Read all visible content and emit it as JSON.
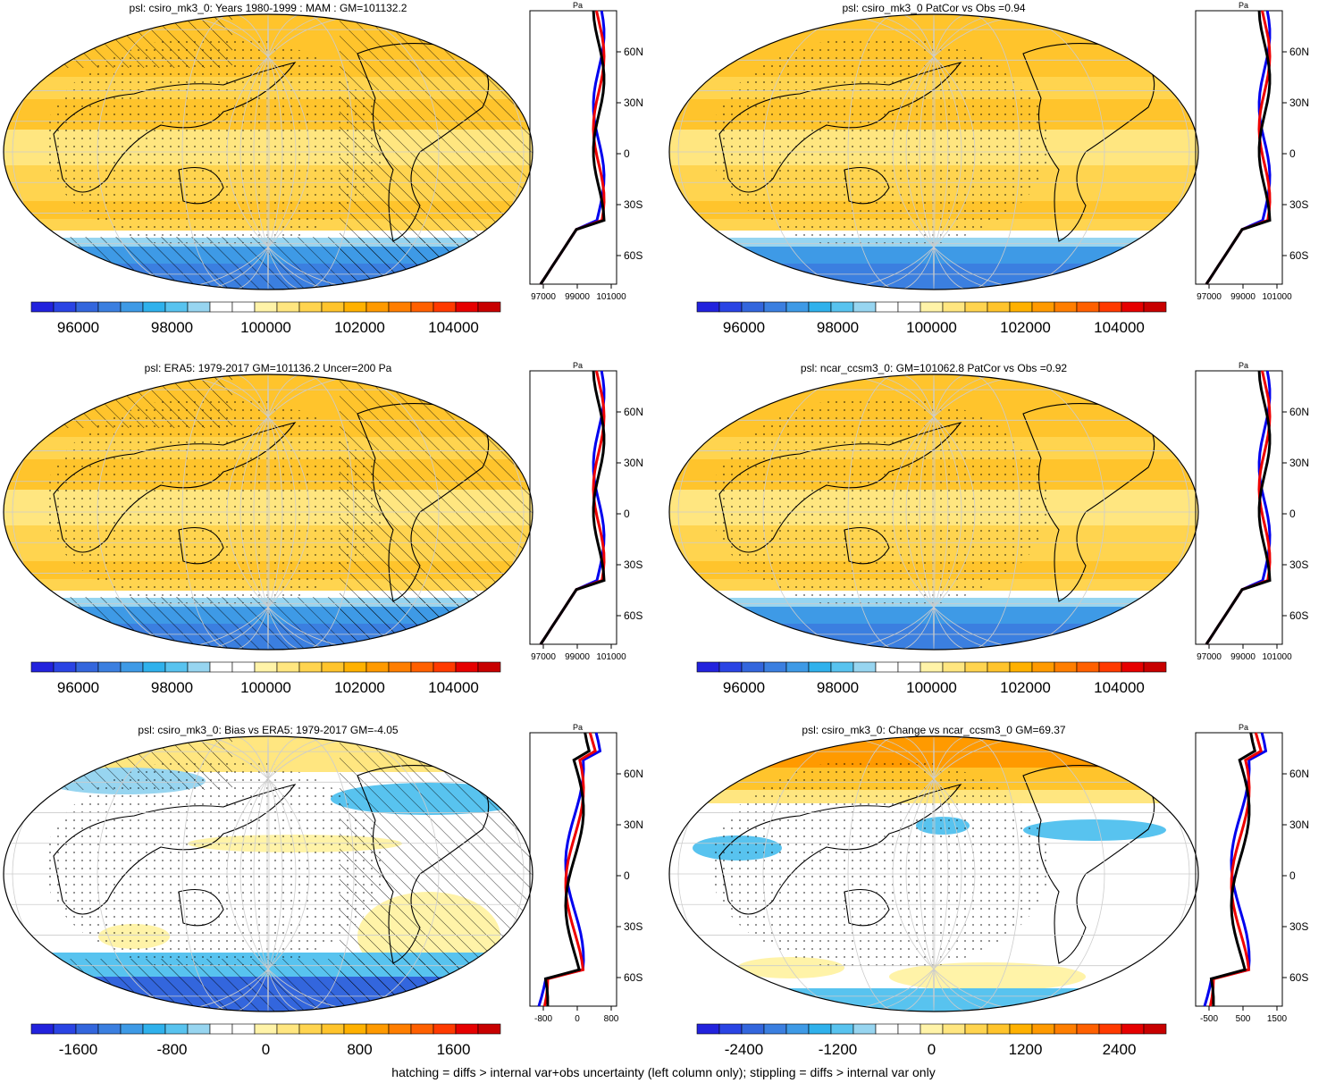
{
  "footer": "hatching = diffs > internal var+obs uncertainty (left column only); stippling = diffs > internal var only",
  "palettes": {
    "abs": [
      "#2222dd",
      "#2a44e4",
      "#3366dd",
      "#3b7fe0",
      "#3e9ae6",
      "#2fb1ec",
      "#58c3ef",
      "#97d5f0",
      "#ffffff",
      "#ffffff",
      "#fff3a8",
      "#ffe680",
      "#ffd44f",
      "#ffc42c",
      "#ffb100",
      "#ff9a00",
      "#ff7e00",
      "#ff6000",
      "#ff3a00",
      "#e60000",
      "#c80000"
    ],
    "diff": [
      "#2222dd",
      "#2a44e4",
      "#3366dd",
      "#3b7fe0",
      "#3e9ae6",
      "#2fb1ec",
      "#58c3ef",
      "#97d5f0",
      "#ffffff",
      "#ffffff",
      "#fff3a8",
      "#ffe680",
      "#ffd44f",
      "#ffc42c",
      "#ffb100",
      "#ff9a00",
      "#ff7e00",
      "#ff6000",
      "#ff3a00",
      "#e60000",
      "#c80000"
    ]
  },
  "profile_colors": [
    "#0000ee",
    "#ee0000",
    "#000000"
  ],
  "panels": [
    {
      "id": "p1",
      "title": "psl: csiro_mk3_0: Years 1980-1999 : MAM : GM=101132.2",
      "kind": "abs",
      "hatch": true,
      "cbar_labels": [
        "96000",
        "98000",
        "100000",
        "102000",
        "104000"
      ],
      "prof_xticks": [
        "97000",
        "99000",
        "101000"
      ],
      "prof_unit": "Pa",
      "prof_lat": [
        "60N",
        "30N",
        "0",
        "30S",
        "60S"
      ]
    },
    {
      "id": "p2",
      "title": "psl: csiro_mk3_0 PatCor vs Obs =0.94",
      "kind": "abs",
      "hatch": false,
      "cbar_labels": [
        "96000",
        "98000",
        "100000",
        "102000",
        "104000"
      ],
      "prof_xticks": [
        "97000",
        "99000",
        "101000"
      ],
      "prof_unit": "Pa",
      "prof_lat": [
        "60N",
        "30N",
        "0",
        "30S",
        "60S"
      ]
    },
    {
      "id": "p3",
      "title": "psl: ERA5: 1979-2017 GM=101136.2 Uncer=200 Pa",
      "kind": "abs",
      "hatch": true,
      "cbar_labels": [
        "96000",
        "98000",
        "100000",
        "102000",
        "104000"
      ],
      "prof_xticks": [
        "97000",
        "99000",
        "101000"
      ],
      "prof_unit": "Pa",
      "prof_lat": [
        "60N",
        "30N",
        "0",
        "30S",
        "60S"
      ]
    },
    {
      "id": "p4",
      "title": "psl: ncar_ccsm3_0: GM=101062.8 PatCor vs Obs =0.92",
      "kind": "abs",
      "hatch": false,
      "cbar_labels": [
        "96000",
        "98000",
        "100000",
        "102000",
        "104000"
      ],
      "prof_xticks": [
        "97000",
        "99000",
        "101000"
      ],
      "prof_unit": "Pa",
      "prof_lat": [
        "60N",
        "30N",
        "0",
        "30S",
        "60S"
      ]
    },
    {
      "id": "p5",
      "title": "psl: csiro_mk3_0: Bias vs ERA5: 1979-2017 GM=-4.05",
      "kind": "bias",
      "hatch": true,
      "cbar_labels": [
        "-1600",
        "-800",
        "0",
        "800",
        "1600"
      ],
      "prof_xticks": [
        "-800",
        "0",
        "800"
      ],
      "prof_unit": "Pa",
      "prof_lat": [
        "60N",
        "30N",
        "0",
        "30S",
        "60S"
      ]
    },
    {
      "id": "p6",
      "title": "psl: csiro_mk3_0: Change vs ncar_ccsm3_0 GM=69.37",
      "kind": "change",
      "hatch": false,
      "cbar_labels": [
        "-2400",
        "-1200",
        "0",
        "1200",
        "2400"
      ],
      "prof_xticks": [
        "-500",
        "500",
        "1500"
      ],
      "prof_unit": "Pa",
      "prof_lat": [
        "60N",
        "30N",
        "0",
        "30S",
        "60S"
      ]
    }
  ]
}
